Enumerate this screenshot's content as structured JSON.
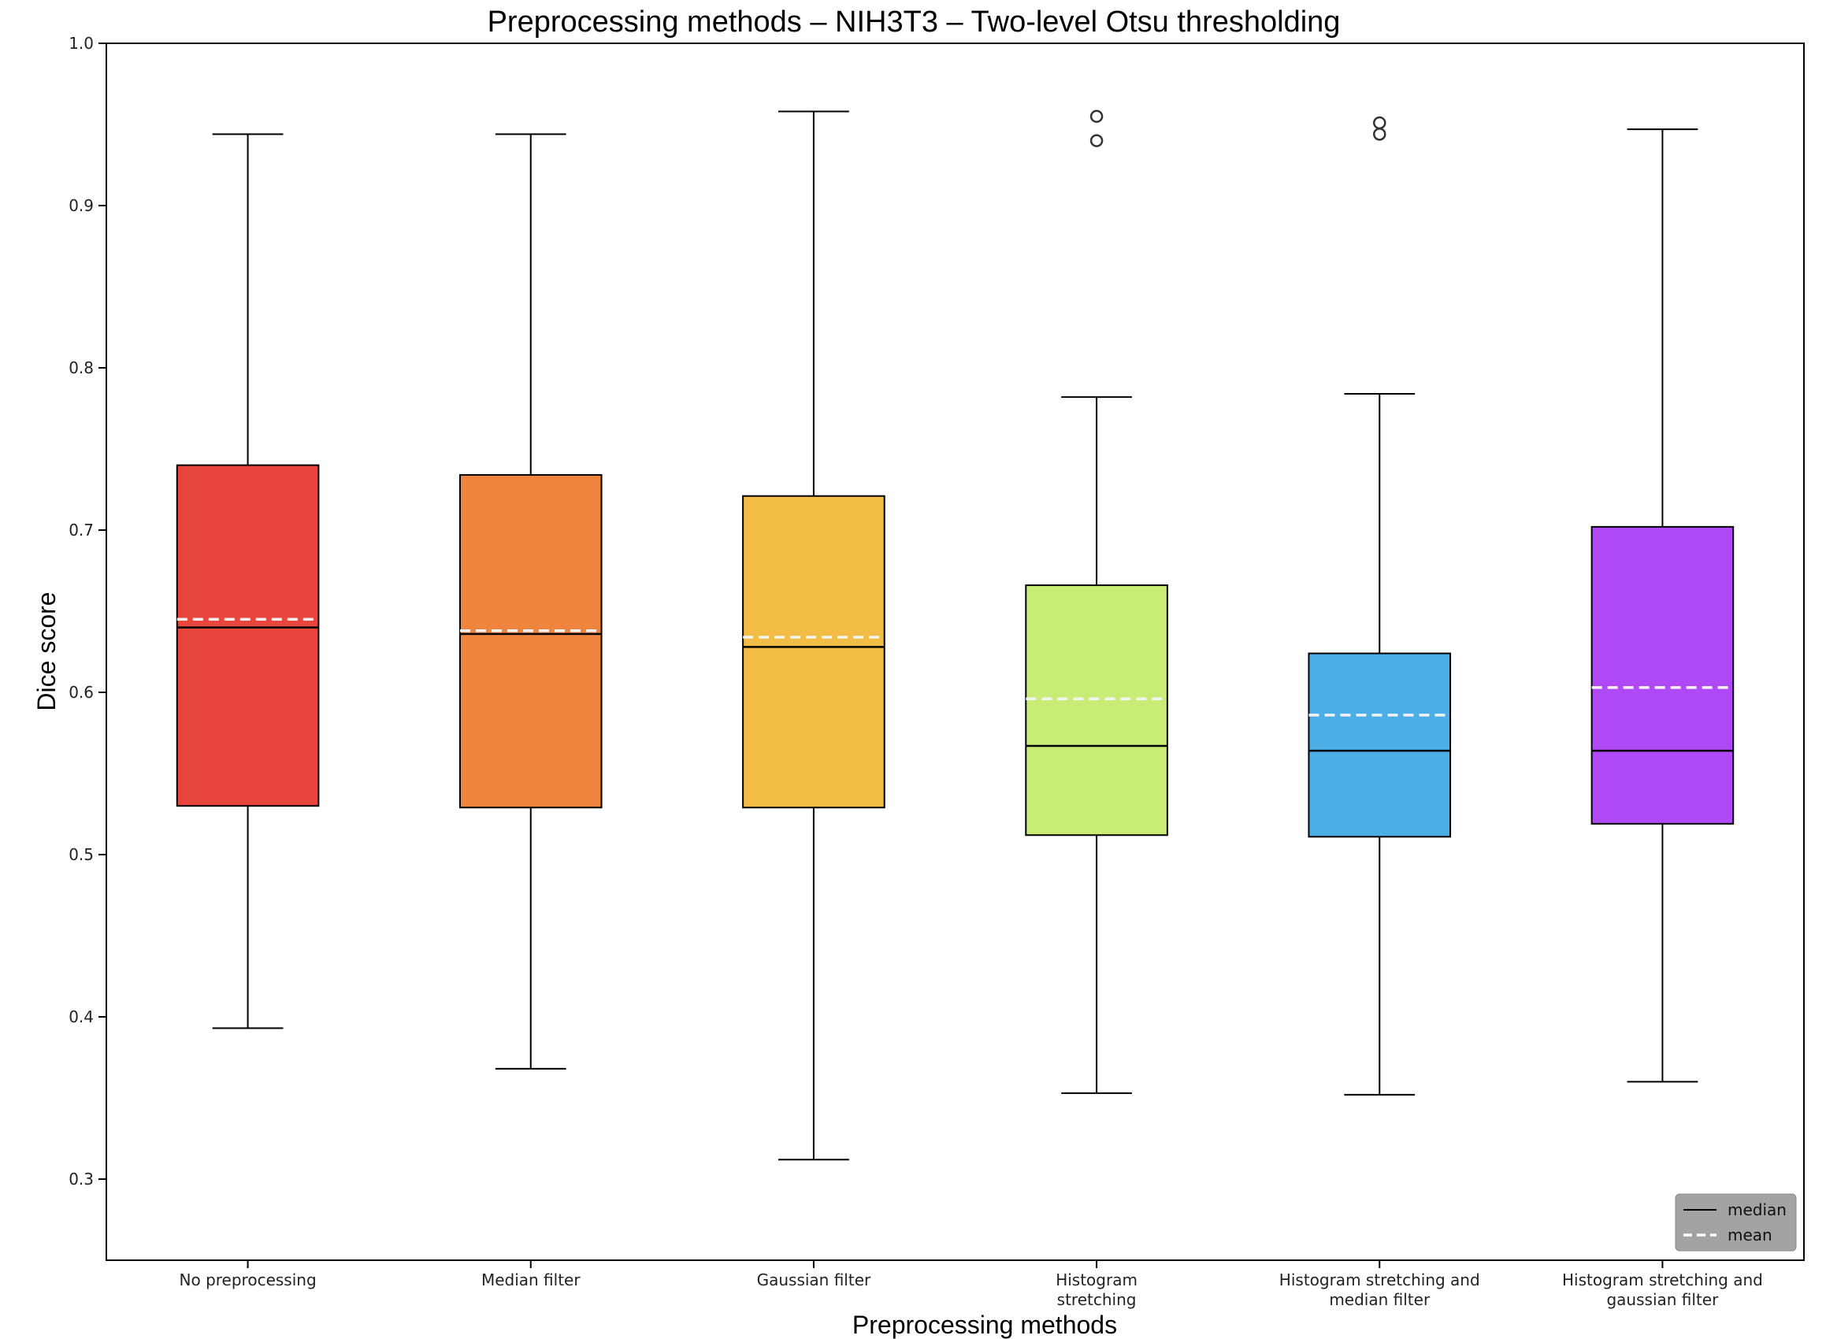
{
  "chart_data": {
    "type": "box",
    "title": "Preprocessing methods – NIH3T3 – Two-level Otsu thresholding",
    "xlabel": "Preprocessing methods",
    "ylabel": "Dice score",
    "ylim": [
      0.25,
      1.0
    ],
    "yticks": [
      "0.3",
      "0.4",
      "0.5",
      "0.6",
      "0.7",
      "0.8",
      "0.9",
      "1.0"
    ],
    "grid": false,
    "legend_position": "bottom-right",
    "legend": [
      {
        "label": "median",
        "style": "solid",
        "color": "#000000"
      },
      {
        "label": "mean",
        "style": "dashed",
        "color": "#ffffff"
      }
    ],
    "categories": [
      {
        "label_lines": [
          "No preprocessing"
        ],
        "color": "#e8453c",
        "whisker_low": 0.393,
        "q1": 0.53,
        "median": 0.64,
        "mean": 0.645,
        "q3": 0.74,
        "whisker_high": 0.944,
        "outliers": []
      },
      {
        "label_lines": [
          "Median filter"
        ],
        "color": "#ee843e",
        "whisker_low": 0.368,
        "q1": 0.529,
        "median": 0.636,
        "mean": 0.638,
        "q3": 0.734,
        "whisker_high": 0.944,
        "outliers": []
      },
      {
        "label_lines": [
          "Gaussian filter"
        ],
        "color": "#f3bd45",
        "whisker_low": 0.312,
        "q1": 0.529,
        "median": 0.628,
        "mean": 0.634,
        "q3": 0.721,
        "whisker_high": 0.958,
        "outliers": []
      },
      {
        "label_lines": [
          "Histogram",
          "stretching"
        ],
        "color": "#c8ec76",
        "whisker_low": 0.353,
        "q1": 0.512,
        "median": 0.567,
        "mean": 0.596,
        "q3": 0.666,
        "whisker_high": 0.782,
        "outliers": [
          0.94,
          0.955
        ]
      },
      {
        "label_lines": [
          "Histogram stretching and",
          "median filter"
        ],
        "color": "#4caee6",
        "whisker_low": 0.352,
        "q1": 0.511,
        "median": 0.564,
        "mean": 0.586,
        "q3": 0.624,
        "whisker_high": 0.784,
        "outliers": [
          0.944,
          0.951
        ]
      },
      {
        "label_lines": [
          "Histogram stretching and",
          "gaussian filter"
        ],
        "color": "#af48f5",
        "whisker_low": 0.36,
        "q1": 0.519,
        "median": 0.564,
        "mean": 0.603,
        "q3": 0.702,
        "whisker_high": 0.947,
        "outliers": []
      }
    ]
  }
}
